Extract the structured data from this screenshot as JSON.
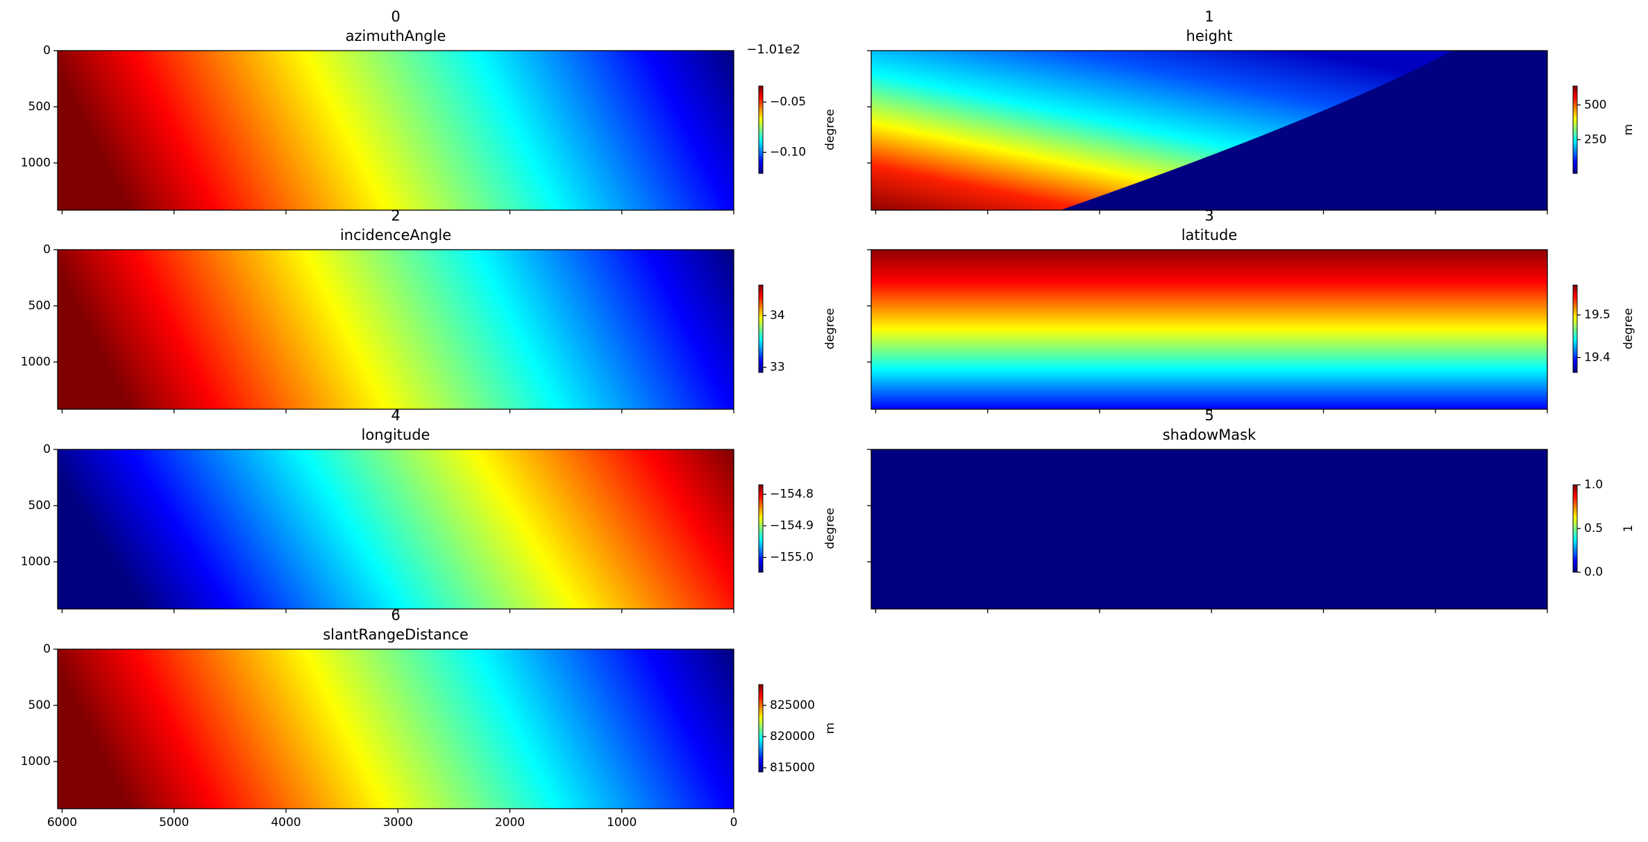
{
  "chart_data": [
    {
      "type": "heatmap",
      "title": "0",
      "subtitle": "azimuthAngle",
      "colormap": "jet",
      "xlim": [
        6040,
        0
      ],
      "ylim": [
        1420,
        0
      ],
      "xticks": [
        6000,
        5000,
        4000,
        3000,
        2000,
        1000,
        0
      ],
      "yticks": [
        0,
        500,
        1000
      ],
      "colorbar_label": "degree",
      "offset_text": "−1.01e2",
      "clim": [
        -0.121,
        -0.034
      ],
      "cticks": [
        {
          "value": -0.05,
          "label": "−0.05"
        },
        {
          "value": -0.1,
          "label": "−0.10"
        }
      ]
    },
    {
      "type": "heatmap",
      "title": "1",
      "subtitle": "height",
      "colormap": "jet",
      "xlim": [
        6040,
        0
      ],
      "ylim": [
        1420,
        0
      ],
      "xticks": [
        6000,
        5000,
        4000,
        3000,
        2000,
        1000,
        0
      ],
      "yticks": [
        0,
        500,
        1000
      ],
      "colorbar_label": "m",
      "clim": [
        8,
        636
      ],
      "cticks": [
        500,
        250
      ]
    },
    {
      "type": "heatmap",
      "title": "2",
      "subtitle": "incidenceAngle",
      "colormap": "jet",
      "xlim": [
        6040,
        0
      ],
      "ylim": [
        1420,
        0
      ],
      "xticks": [
        6000,
        5000,
        4000,
        3000,
        2000,
        1000,
        0
      ],
      "yticks": [
        0,
        500,
        1000
      ],
      "colorbar_label": "degree",
      "clim": [
        32.9,
        34.59
      ],
      "cticks": [
        34,
        33
      ]
    },
    {
      "type": "heatmap",
      "title": "3",
      "subtitle": "latitude",
      "colormap": "jet",
      "xlim": [
        6040,
        0
      ],
      "ylim": [
        1420,
        0
      ],
      "xticks": [
        6000,
        5000,
        4000,
        3000,
        2000,
        1000,
        0
      ],
      "yticks": [
        0,
        500,
        1000
      ],
      "colorbar_label": "degree",
      "clim": [
        19.365,
        19.57
      ],
      "cticks": [
        19.5,
        19.4
      ]
    },
    {
      "type": "heatmap",
      "title": "4",
      "subtitle": "longitude",
      "colormap": "jet",
      "xlim": [
        6040,
        0
      ],
      "ylim": [
        1420,
        0
      ],
      "xticks": [
        6000,
        5000,
        4000,
        3000,
        2000,
        1000,
        0
      ],
      "yticks": [
        0,
        500,
        1000
      ],
      "colorbar_label": "degree",
      "clim": [
        -155.047,
        -154.77
      ],
      "cticks": [
        {
          "value": -154.8,
          "label": "−154.8"
        },
        {
          "value": -154.9,
          "label": "−154.9"
        },
        {
          "value": -155.0,
          "label": "−155.0"
        }
      ]
    },
    {
      "type": "heatmap",
      "title": "5",
      "subtitle": "shadowMask",
      "colormap": "jet",
      "xlim": [
        6040,
        0
      ],
      "ylim": [
        1420,
        0
      ],
      "xticks": [
        6000,
        5000,
        4000,
        3000,
        2000,
        1000,
        0
      ],
      "yticks": [
        0,
        500,
        1000
      ],
      "colorbar_label": "1",
      "clim": [
        0,
        1
      ],
      "cticks": [
        {
          "value": 1.0,
          "label": "1.0"
        },
        0.5,
        {
          "value": 0.0,
          "label": "0.0"
        }
      ]
    },
    {
      "type": "heatmap",
      "title": "6",
      "subtitle": "slantRangeDistance",
      "colormap": "jet",
      "xlim": [
        6040,
        0
      ],
      "ylim": [
        1420,
        0
      ],
      "xticks": [
        6000,
        5000,
        4000,
        3000,
        2000,
        1000,
        0
      ],
      "yticks": [
        0,
        500,
        1000
      ],
      "colorbar_label": "m",
      "clim": [
        814333,
        828333
      ],
      "cticks": [
        825000,
        820000,
        815000
      ]
    }
  ]
}
